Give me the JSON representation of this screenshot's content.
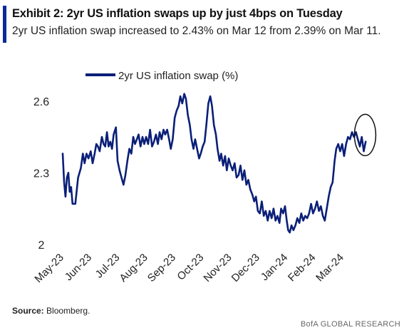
{
  "header": {
    "title": "Exhibit 2: 2yr US inflation swaps up by just 4bps on Tuesday",
    "subtitle": "2yr US inflation swap increased to 2.43% on Mar 12 from 2.39% on Mar 11."
  },
  "footer": {
    "source_label": "Source:",
    "source_text": "Bloomberg.",
    "brand": "BofA GLOBAL RESEARCH"
  },
  "colors": {
    "accent": "#0a2a99",
    "series": "#0a1f78"
  },
  "chart_data": {
    "type": "line",
    "legend": {
      "label": "2yr US inflation swap (%)",
      "placement": "top-left"
    },
    "ylim": [
      2.0,
      2.65
    ],
    "yticks": [
      "2.6",
      "2.3",
      "2"
    ],
    "ytick_values": [
      2.6,
      2.3,
      2.0
    ],
    "xlim": [
      0,
      11.4
    ],
    "xtick_labels": [
      "May-23",
      "Jun-23",
      "Jul-23",
      "Aug-23",
      "Sep-23",
      "Oct-23",
      "Nov-23",
      "Dec-23",
      "Jan-24",
      "Feb-24",
      "Mar-24"
    ],
    "xtick_values": [
      0,
      1,
      2,
      3,
      4,
      5,
      6,
      7,
      8,
      9,
      10
    ],
    "annotation": {
      "type": "circle",
      "x": 10.8,
      "y": 2.44
    },
    "series": [
      {
        "name": "2yr US inflation swap (%)",
        "points": [
          [
            0.0,
            2.38
          ],
          [
            0.05,
            2.26
          ],
          [
            0.1,
            2.2
          ],
          [
            0.15,
            2.28
          ],
          [
            0.2,
            2.3
          ],
          [
            0.25,
            2.22
          ],
          [
            0.3,
            2.24
          ],
          [
            0.35,
            2.17
          ],
          [
            0.45,
            2.17
          ],
          [
            0.55,
            2.28
          ],
          [
            0.65,
            2.32
          ],
          [
            0.72,
            2.38
          ],
          [
            0.78,
            2.34
          ],
          [
            0.85,
            2.38
          ],
          [
            0.92,
            2.36
          ],
          [
            1.0,
            2.39
          ],
          [
            1.07,
            2.34
          ],
          [
            1.14,
            2.38
          ],
          [
            1.2,
            2.42
          ],
          [
            1.26,
            2.41
          ],
          [
            1.32,
            2.39
          ],
          [
            1.4,
            2.45
          ],
          [
            1.46,
            2.42
          ],
          [
            1.52,
            2.41
          ],
          [
            1.58,
            2.47
          ],
          [
            1.64,
            2.41
          ],
          [
            1.7,
            2.43
          ],
          [
            1.76,
            2.4
          ],
          [
            1.82,
            2.46
          ],
          [
            1.9,
            2.49
          ],
          [
            1.96,
            2.35
          ],
          [
            2.03,
            2.31
          ],
          [
            2.1,
            2.28
          ],
          [
            2.17,
            2.25
          ],
          [
            2.24,
            2.29
          ],
          [
            2.31,
            2.35
          ],
          [
            2.38,
            2.4
          ],
          [
            2.45,
            2.38
          ],
          [
            2.52,
            2.45
          ],
          [
            2.58,
            2.42
          ],
          [
            2.65,
            2.44
          ],
          [
            2.71,
            2.46
          ],
          [
            2.78,
            2.41
          ],
          [
            2.85,
            2.45
          ],
          [
            2.91,
            2.42
          ],
          [
            2.98,
            2.45
          ],
          [
            3.05,
            2.42
          ],
          [
            3.12,
            2.48
          ],
          [
            3.19,
            2.41
          ],
          [
            3.26,
            2.43
          ],
          [
            3.33,
            2.46
          ],
          [
            3.4,
            2.42
          ],
          [
            3.46,
            2.47
          ],
          [
            3.53,
            2.44
          ],
          [
            3.6,
            2.48
          ],
          [
            3.66,
            2.46
          ],
          [
            3.73,
            2.48
          ],
          [
            3.8,
            2.44
          ],
          [
            3.86,
            2.4
          ],
          [
            3.93,
            2.44
          ],
          [
            4.0,
            2.53
          ],
          [
            4.07,
            2.56
          ],
          [
            4.14,
            2.58
          ],
          [
            4.2,
            2.62
          ],
          [
            4.27,
            2.59
          ],
          [
            4.34,
            2.63
          ],
          [
            4.4,
            2.61
          ],
          [
            4.47,
            2.54
          ],
          [
            4.54,
            2.5
          ],
          [
            4.6,
            2.44
          ],
          [
            4.67,
            2.4
          ],
          [
            4.73,
            2.44
          ],
          [
            4.8,
            2.4
          ],
          [
            4.87,
            2.36
          ],
          [
            4.93,
            2.38
          ],
          [
            5.0,
            2.41
          ],
          [
            5.07,
            2.43
          ],
          [
            5.13,
            2.5
          ],
          [
            5.2,
            2.59
          ],
          [
            5.27,
            2.62
          ],
          [
            5.33,
            2.58
          ],
          [
            5.4,
            2.5
          ],
          [
            5.47,
            2.46
          ],
          [
            5.53,
            2.4
          ],
          [
            5.6,
            2.35
          ],
          [
            5.66,
            2.38
          ],
          [
            5.73,
            2.33
          ],
          [
            5.8,
            2.37
          ],
          [
            5.86,
            2.31
          ],
          [
            5.93,
            2.36
          ],
          [
            6.0,
            2.33
          ],
          [
            6.07,
            2.31
          ],
          [
            6.14,
            2.34
          ],
          [
            6.21,
            2.28
          ],
          [
            6.28,
            2.29
          ],
          [
            6.35,
            2.33
          ],
          [
            6.42,
            2.27
          ],
          [
            6.49,
            2.31
          ],
          [
            6.56,
            2.25
          ],
          [
            6.63,
            2.27
          ],
          [
            6.7,
            2.23
          ],
          [
            6.77,
            2.21
          ],
          [
            6.84,
            2.18
          ],
          [
            6.9,
            2.2
          ],
          [
            6.97,
            2.14
          ],
          [
            7.04,
            2.13
          ],
          [
            7.11,
            2.18
          ],
          [
            7.18,
            2.12
          ],
          [
            7.25,
            2.14
          ],
          [
            7.32,
            2.1
          ],
          [
            7.39,
            2.14
          ],
          [
            7.46,
            2.11
          ],
          [
            7.53,
            2.15
          ],
          [
            7.6,
            2.1
          ],
          [
            7.67,
            2.12
          ],
          [
            7.74,
            2.09
          ],
          [
            7.8,
            2.15
          ],
          [
            7.87,
            2.13
          ],
          [
            7.94,
            2.16
          ],
          [
            8.0,
            2.1
          ],
          [
            8.05,
            2.06
          ],
          [
            8.11,
            2.05
          ],
          [
            8.17,
            2.08
          ],
          [
            8.24,
            2.06
          ],
          [
            8.31,
            2.08
          ],
          [
            8.38,
            2.11
          ],
          [
            8.45,
            2.09
          ],
          [
            8.52,
            2.13
          ],
          [
            8.59,
            2.1
          ],
          [
            8.66,
            2.12
          ],
          [
            8.73,
            2.11
          ],
          [
            8.8,
            2.13
          ],
          [
            8.87,
            2.17
          ],
          [
            8.94,
            2.13
          ],
          [
            9.01,
            2.15
          ],
          [
            9.08,
            2.18
          ],
          [
            9.15,
            2.14
          ],
          [
            9.22,
            2.16
          ],
          [
            9.29,
            2.12
          ],
          [
            9.36,
            2.1
          ],
          [
            9.43,
            2.15
          ],
          [
            9.5,
            2.2
          ],
          [
            9.57,
            2.24
          ],
          [
            9.64,
            2.26
          ],
          [
            9.71,
            2.35
          ],
          [
            9.77,
            2.4
          ],
          [
            9.84,
            2.42
          ],
          [
            9.91,
            2.39
          ],
          [
            9.98,
            2.42
          ],
          [
            10.05,
            2.37
          ],
          [
            10.12,
            2.42
          ],
          [
            10.19,
            2.45
          ],
          [
            10.26,
            2.44
          ],
          [
            10.33,
            2.47
          ],
          [
            10.4,
            2.45
          ],
          [
            10.47,
            2.47
          ],
          [
            10.54,
            2.44
          ],
          [
            10.61,
            2.41
          ],
          [
            10.68,
            2.45
          ],
          [
            10.75,
            2.39
          ],
          [
            10.82,
            2.43
          ]
        ]
      }
    ]
  }
}
